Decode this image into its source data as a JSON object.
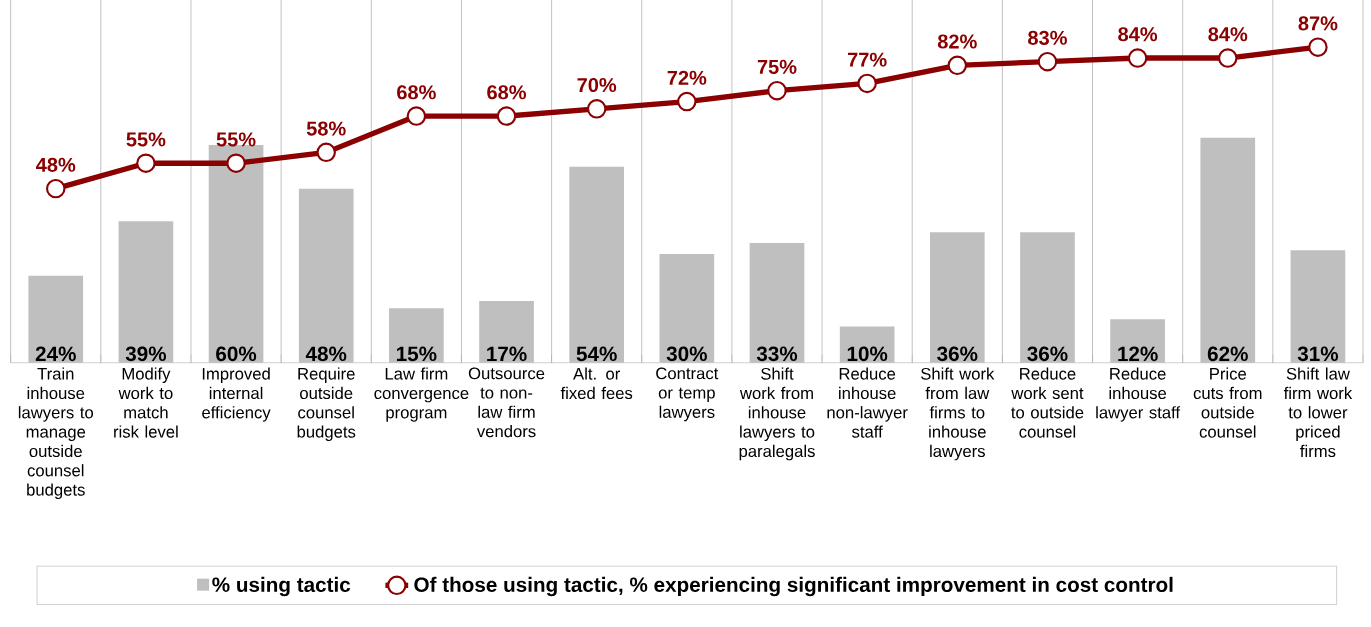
{
  "chart_data": {
    "type": "bar",
    "categories": [
      "Train inhouse lawyers to manage outside counsel budgets",
      "Modify work to match risk level",
      "Improved internal efficiency",
      "Require outside counsel budgets",
      "Law firm convergence program",
      "Outsource to non-law firm vendors",
      "Alt. or fixed fees",
      "Contract or temp lawyers",
      "Shift work from inhouse lawyers to paralegals",
      "Reduce inhouse non-lawyer staff",
      "Shift work from law firms to inhouse lawyers",
      "Reduce work sent to outside counsel",
      "Reduce inhouse lawyer staff",
      "Price cuts from outside counsel",
      "Shift law firm work to lower priced firms"
    ],
    "series": [
      {
        "name": "% using tactic",
        "color": "#bfbfbf",
        "values": [
          24,
          39,
          60,
          48,
          15,
          17,
          54,
          30,
          33,
          10,
          36,
          36,
          12,
          62,
          31
        ],
        "value_labels": [
          "24%",
          "39%",
          "60%",
          "48%",
          "15%",
          "17%",
          "54%",
          "30%",
          "33%",
          "10%",
          "36%",
          "36%",
          "12%",
          "62%",
          "31%"
        ]
      },
      {
        "name": "Of those using tactic, % experiencing significant improvement in cost control",
        "type": "line",
        "color": "#8b0000",
        "values": [
          48,
          55,
          55,
          58,
          68,
          68,
          70,
          72,
          75,
          77,
          82,
          83,
          84,
          84,
          87
        ],
        "value_labels": [
          "48%",
          "55%",
          "55%",
          "58%",
          "68%",
          "68%",
          "70%",
          "72%",
          "75%",
          "77%",
          "82%",
          "83%",
          "84%",
          "84%",
          "87%"
        ]
      }
    ],
    "marker": "circle",
    "ylim": [
      0,
      100
    ],
    "grid": "x",
    "legend": "bottom",
    "tick_labels": "x"
  }
}
